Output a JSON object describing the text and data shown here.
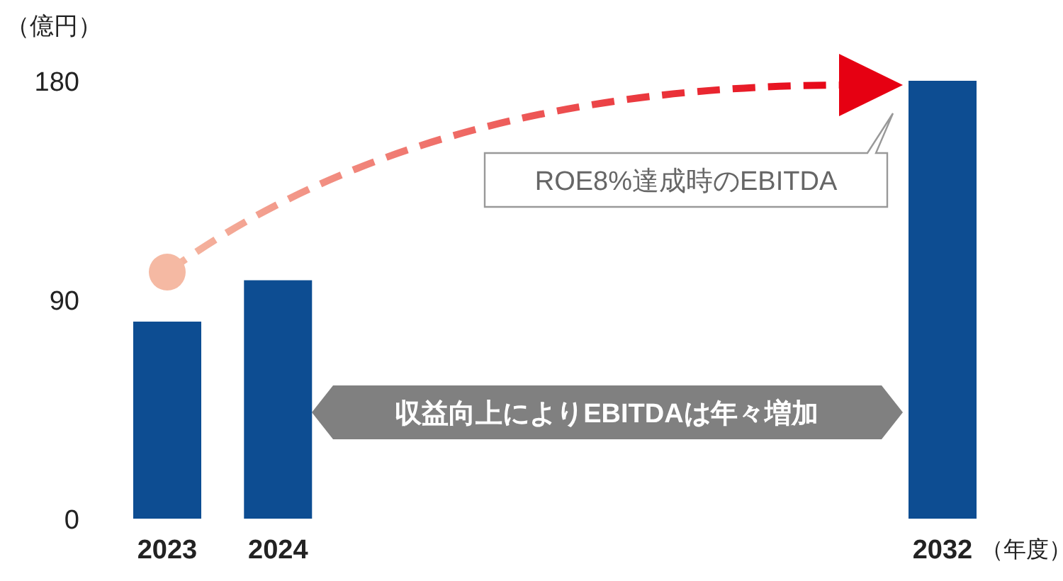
{
  "chart_data": {
    "type": "bar",
    "ylabel": "（億円）",
    "xlabel": "（年度）",
    "categories": [
      "2023",
      "2024",
      null,
      null,
      null,
      null,
      null,
      "2032"
    ],
    "values": [
      81,
      98,
      null,
      null,
      null,
      null,
      null,
      180
    ],
    "color": "#0d4d92",
    "ylim": [
      0,
      180
    ],
    "yticks": [
      0,
      90,
      180
    ],
    "annotations": [
      "ROE8%達成時のEBITDA",
      "収益向上によりEBITDAは年々増加"
    ]
  }
}
